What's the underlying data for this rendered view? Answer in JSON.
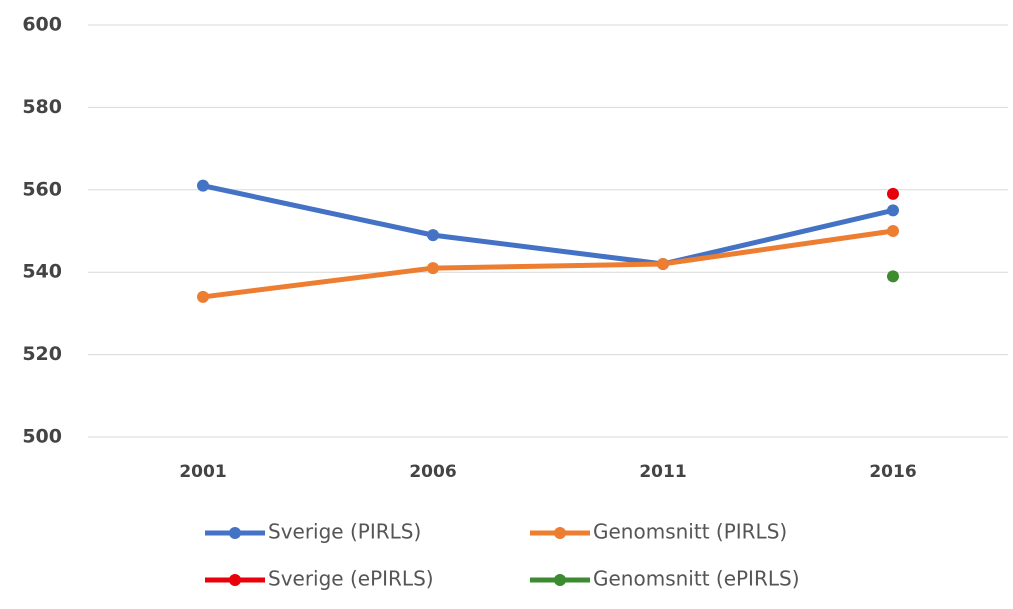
{
  "chart_data": {
    "type": "line",
    "categories": [
      "2001",
      "2006",
      "2011",
      "2016"
    ],
    "series": [
      {
        "name": "Sverige (PIRLS)",
        "color": "#4472c4",
        "values": [
          561,
          549,
          542,
          555
        ]
      },
      {
        "name": "Genomsnitt (PIRLS)",
        "color": "#ed7d31",
        "values": [
          534,
          541,
          542,
          550
        ]
      },
      {
        "name": "Sverige (ePIRLS)",
        "color": "#e8000b",
        "values": [
          null,
          null,
          null,
          559
        ]
      },
      {
        "name": "Genomsnitt (ePIRLS)",
        "color": "#3d8b2f",
        "values": [
          null,
          null,
          null,
          539
        ]
      }
    ],
    "ylim": [
      500,
      600
    ],
    "yticks": [
      500,
      520,
      540,
      560,
      580,
      600
    ],
    "grid": true,
    "legend": "bottom"
  }
}
